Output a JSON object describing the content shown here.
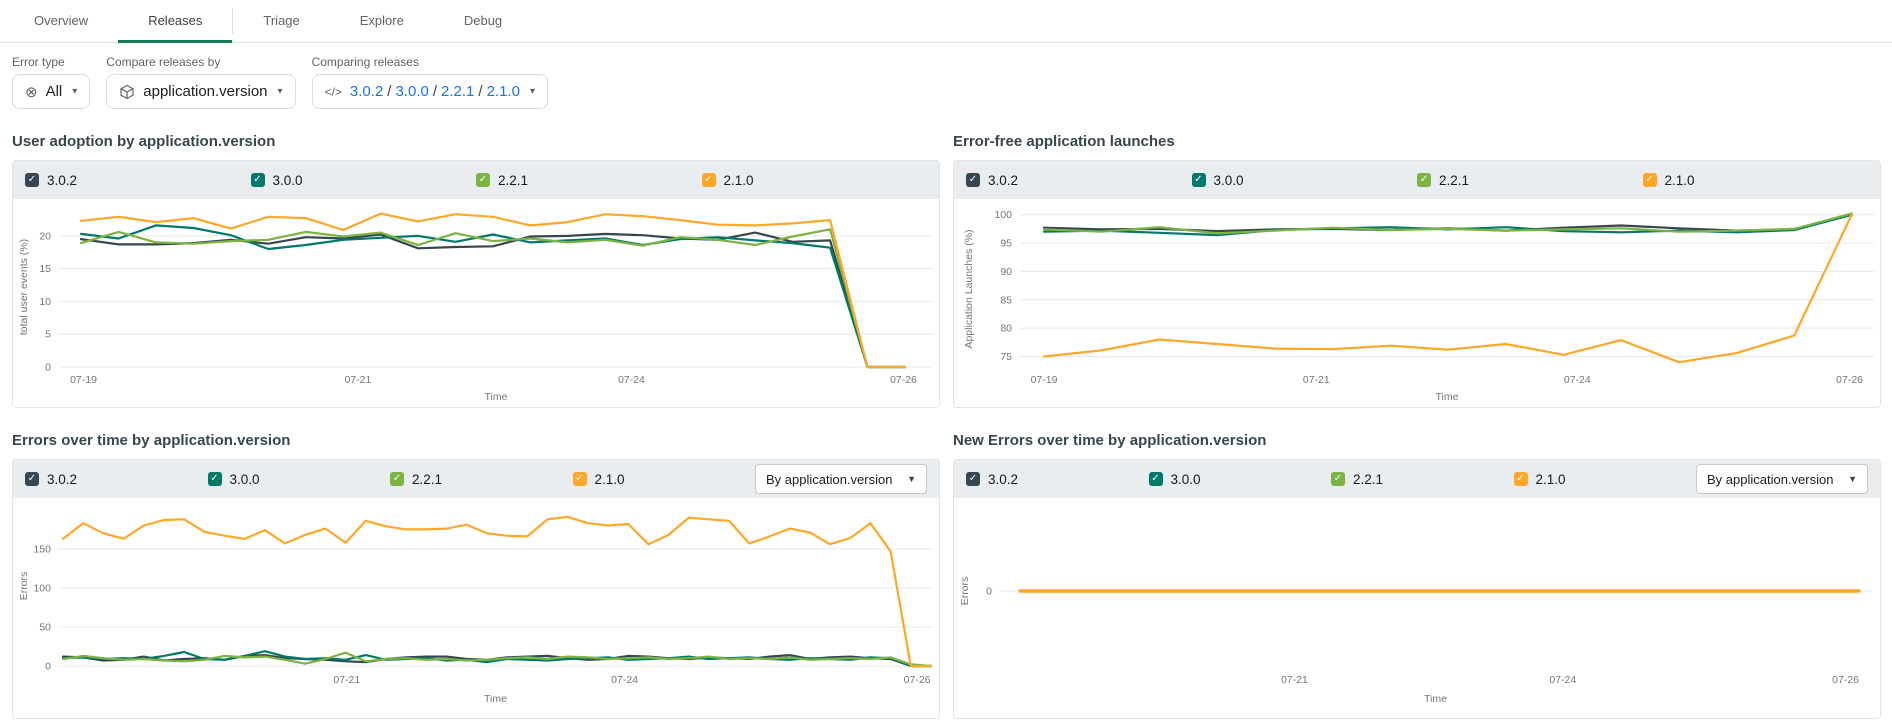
{
  "tabs": {
    "items": [
      {
        "label": "Overview",
        "active": false
      },
      {
        "label": "Releases",
        "active": true
      },
      {
        "label": "Triage",
        "active": false
      },
      {
        "label": "Explore",
        "active": false
      },
      {
        "label": "Debug",
        "active": false
      }
    ]
  },
  "icons": {
    "checkbox_check": "✓",
    "caret_down": "▾",
    "select_caret": "▼",
    "error_type_all": "⊗",
    "code": "</>"
  },
  "filters": {
    "error_type": {
      "label": "Error type",
      "value": "All"
    },
    "compare_by": {
      "label": "Compare releases by",
      "value": "application.version"
    },
    "comparing": {
      "label": "Comparing releases",
      "versions": [
        "3.0.2",
        "3.0.0",
        "2.2.1",
        "2.1.0"
      ],
      "separator": "/"
    }
  },
  "group_select": {
    "label": "By application.version"
  },
  "colors": {
    "accent_green": "#147a5c",
    "link_blue": "#1a73e8",
    "series_3_0_2": "#37474f",
    "series_3_0_0": "#00796b",
    "series_2_2_1": "#7cb342",
    "series_2_1_0": "#ffa726"
  },
  "chart_data": [
    {
      "type": "line",
      "title": "User adoption by application.version",
      "xlabel": "Time",
      "ylabel": "total user events (%)",
      "ylim": [
        0,
        24.4
      ],
      "yticks": [
        0,
        5,
        10,
        15,
        20
      ],
      "grid": true,
      "legend_position": "top",
      "xticks": [
        {
          "pos": 0.003,
          "label": "07-19"
        },
        {
          "pos": 0.336,
          "label": "07-21"
        },
        {
          "pos": 0.668,
          "label": "07-24"
        },
        {
          "pos": 0.998,
          "label": "07-26"
        }
      ],
      "series": [
        {
          "name": "3.0.2",
          "color": "#37474f",
          "values": [
            19.5,
            18.7,
            18.7,
            18.9,
            19.4,
            18.8,
            19.8,
            19.6,
            20.2,
            18.1,
            18.3,
            18.4,
            19.9,
            20.0,
            20.3,
            20.1,
            19.6,
            19.4,
            20.5,
            19.1,
            19.3,
            0,
            0
          ]
        },
        {
          "name": "3.0.0",
          "color": "#00796b",
          "values": [
            20.3,
            19.6,
            21.6,
            21.2,
            20.1,
            18.0,
            18.6,
            19.4,
            19.7,
            20.0,
            19.1,
            20.2,
            19.0,
            19.3,
            19.6,
            18.6,
            19.5,
            19.8,
            19.3,
            18.9,
            18.2,
            0,
            0
          ]
        },
        {
          "name": "2.2.1",
          "color": "#7cb342",
          "values": [
            18.9,
            20.6,
            19.0,
            18.8,
            19.2,
            19.4,
            20.6,
            19.9,
            20.5,
            18.6,
            20.4,
            19.2,
            19.6,
            19.0,
            19.4,
            18.5,
            19.8,
            19.4,
            18.6,
            19.9,
            21.0,
            0,
            0
          ]
        },
        {
          "name": "2.1.0",
          "color": "#ffa726",
          "values": [
            22.3,
            22.9,
            22.1,
            22.7,
            21.1,
            22.9,
            22.7,
            20.9,
            23.4,
            22.2,
            23.3,
            22.9,
            21.6,
            22.1,
            23.3,
            23.0,
            22.4,
            21.7,
            21.6,
            21.9,
            22.4,
            0,
            0
          ]
        }
      ]
    },
    {
      "type": "line",
      "title": "Error-free application launches",
      "xlabel": "Time",
      "ylabel": "Application Launches (%)",
      "ylim": [
        72.8,
        101
      ],
      "yticks": [
        75,
        80,
        85,
        90,
        95,
        100
      ],
      "grid": true,
      "legend_position": "top",
      "xticks": [
        {
          "pos": 0.0,
          "label": "07-19"
        },
        {
          "pos": 0.337,
          "label": "07-21"
        },
        {
          "pos": 0.66,
          "label": "07-24"
        },
        {
          "pos": 0.997,
          "label": "07-26"
        }
      ],
      "series": [
        {
          "name": "3.0.2",
          "color": "#37474f",
          "values": [
            97.7,
            97.4,
            97.5,
            97.1,
            97.4,
            97.5,
            97.3,
            97.6,
            97.2,
            97.7,
            98.1,
            97.6,
            97.2,
            97.4,
            100.0
          ]
        },
        {
          "name": "3.0.0",
          "color": "#00796b",
          "values": [
            97.0,
            97.2,
            96.8,
            96.4,
            97.3,
            97.6,
            97.8,
            97.4,
            97.8,
            97.1,
            96.9,
            97.2,
            96.9,
            97.3,
            100.0
          ]
        },
        {
          "name": "2.2.1",
          "color": "#7cb342",
          "values": [
            97.4,
            97.0,
            97.8,
            96.7,
            97.2,
            97.7,
            97.3,
            97.5,
            97.2,
            97.4,
            97.6,
            97.0,
            97.2,
            97.5,
            100.2
          ]
        },
        {
          "name": "2.1.0",
          "color": "#ffa726",
          "values": [
            75.0,
            76.1,
            78.0,
            77.2,
            76.4,
            76.3,
            76.9,
            76.2,
            77.2,
            75.3,
            77.9,
            74.0,
            75.6,
            78.7,
            100.1
          ]
        }
      ]
    },
    {
      "type": "line",
      "title": "Errors over time by application.version",
      "xlabel": "Time",
      "ylabel": "Errors",
      "ylim": [
        0,
        205
      ],
      "yticks": [
        0,
        50,
        100,
        150
      ],
      "grid": true,
      "legend_position": "top",
      "group_by_label": "By application.version",
      "xticks": [
        {
          "pos": 0.327,
          "label": "07-21"
        },
        {
          "pos": 0.647,
          "label": "07-24"
        },
        {
          "pos": 0.984,
          "label": "07-26"
        }
      ],
      "series": [
        {
          "name": "3.0.2",
          "color": "#37474f",
          "values": [
            12,
            11,
            7,
            8,
            12,
            7,
            9,
            10,
            8,
            13,
            14,
            10,
            9,
            8,
            6,
            5,
            9,
            11,
            12,
            12,
            9,
            8,
            11,
            12,
            13,
            10,
            8,
            9,
            13,
            12,
            10,
            9,
            11,
            10,
            9,
            12,
            14,
            9,
            11,
            12,
            10,
            9,
            0,
            0
          ]
        },
        {
          "name": "3.0.0",
          "color": "#00796b",
          "values": [
            10,
            11,
            9,
            10,
            9,
            13,
            18,
            9,
            8,
            13,
            19,
            12,
            9,
            10,
            8,
            14,
            8,
            9,
            10,
            7,
            8,
            5,
            9,
            8,
            7,
            9,
            10,
            11,
            8,
            9,
            10,
            12,
            9,
            10,
            11,
            9,
            8,
            10,
            9,
            8,
            11,
            10,
            0,
            0
          ]
        },
        {
          "name": "2.2.1",
          "color": "#7cb342",
          "values": [
            9,
            13,
            10,
            8,
            9,
            7,
            6,
            8,
            13,
            11,
            12,
            8,
            3,
            9,
            17,
            6,
            9,
            10,
            8,
            9,
            7,
            8,
            10,
            11,
            9,
            12,
            11,
            9,
            10,
            11,
            9,
            10,
            12,
            9,
            10,
            9,
            11,
            8,
            9,
            10,
            9,
            11,
            2,
            0
          ]
        },
        {
          "name": "2.1.0",
          "color": "#ffa726",
          "values": [
            163,
            183,
            170,
            163,
            180,
            187,
            188,
            172,
            167,
            163,
            174,
            157,
            168,
            176,
            158,
            186,
            179,
            175,
            175,
            176,
            181,
            170,
            167,
            166,
            188,
            191,
            183,
            180,
            182,
            156,
            168,
            190,
            188,
            186,
            157,
            166,
            176,
            171,
            156,
            164,
            183,
            147,
            0,
            0
          ]
        }
      ]
    },
    {
      "type": "line",
      "title": "New Errors over time by application.version",
      "xlabel": "Time",
      "ylabel": "Errors",
      "ylim": [
        -100,
        100
      ],
      "yticks": [
        0
      ],
      "grid": true,
      "legend_position": "top",
      "group_by_label": "By application.version",
      "xticks": [
        {
          "pos": 0.327,
          "label": "07-21"
        },
        {
          "pos": 0.647,
          "label": "07-24"
        },
        {
          "pos": 0.984,
          "label": "07-26"
        }
      ],
      "series": [
        {
          "name": "3.0.2",
          "color": "#37474f",
          "values": [
            0,
            0,
            0,
            0,
            0,
            0,
            0,
            0
          ]
        },
        {
          "name": "3.0.0",
          "color": "#00796b",
          "values": [
            0,
            0,
            0,
            0,
            0,
            0,
            0,
            0
          ]
        },
        {
          "name": "2.2.1",
          "color": "#7cb342",
          "values": [
            0,
            0,
            0,
            0,
            0,
            0,
            0,
            0
          ]
        },
        {
          "name": "2.1.0",
          "color": "#ffa726",
          "values": [
            0,
            0,
            0,
            0,
            0,
            0,
            0,
            0
          ]
        }
      ]
    }
  ]
}
